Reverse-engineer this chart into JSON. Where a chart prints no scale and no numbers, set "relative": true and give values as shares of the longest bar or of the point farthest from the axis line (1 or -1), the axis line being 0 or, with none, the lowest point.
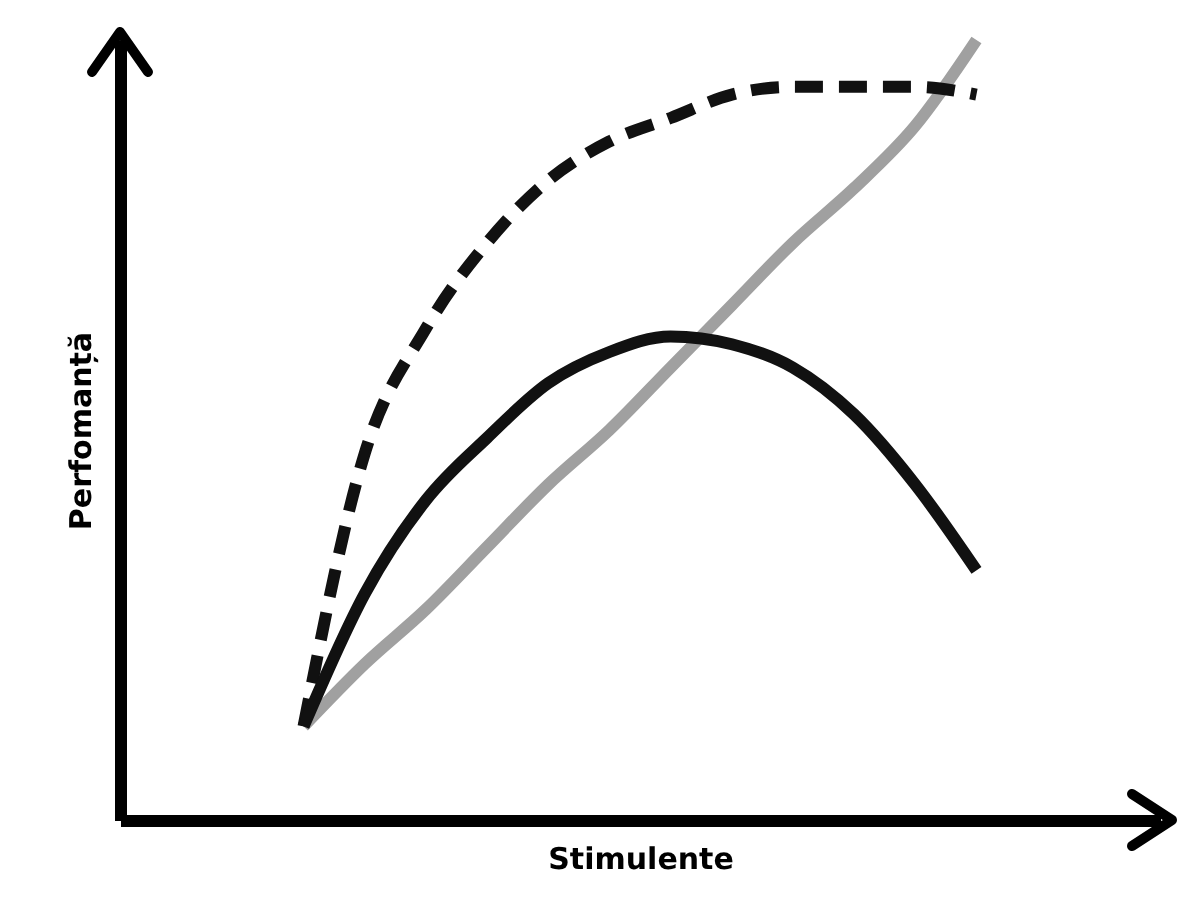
{
  "chart_data": {
    "type": "line",
    "relative": true,
    "xlabel": "Stimulente",
    "ylabel": "Perfomanță",
    "tick_labels": false,
    "grid": false,
    "marker": "none",
    "categories": [
      null,
      null,
      null,
      null,
      null,
      null,
      null,
      null,
      null,
      null,
      null,
      null,
      null,
      null,
      null,
      null,
      null,
      null
    ],
    "series": [
      {
        "color": "#a0a0a0",
        "line_style": "solid",
        "values": [
          null,
          null,
          null,
          0.12,
          0.2,
          0.27,
          0.35,
          0.43,
          0.5,
          0.58,
          0.66,
          0.74,
          0.81,
          0.89,
          1.0,
          null,
          null,
          null
        ]
      },
      {
        "color": "#111111",
        "line_style": "dashed",
        "values": [
          null,
          null,
          null,
          0.12,
          0.47,
          0.63,
          0.74,
          0.82,
          0.87,
          0.9,
          0.93,
          0.94,
          0.94,
          0.94,
          0.93,
          null,
          null,
          null
        ]
      },
      {
        "color": "#111111",
        "line_style": "solid",
        "values": [
          null,
          null,
          null,
          0.12,
          0.29,
          0.41,
          0.49,
          0.56,
          0.6,
          0.62,
          0.61,
          0.58,
          0.52,
          0.43,
          0.32,
          null,
          null,
          null
        ]
      }
    ]
  }
}
